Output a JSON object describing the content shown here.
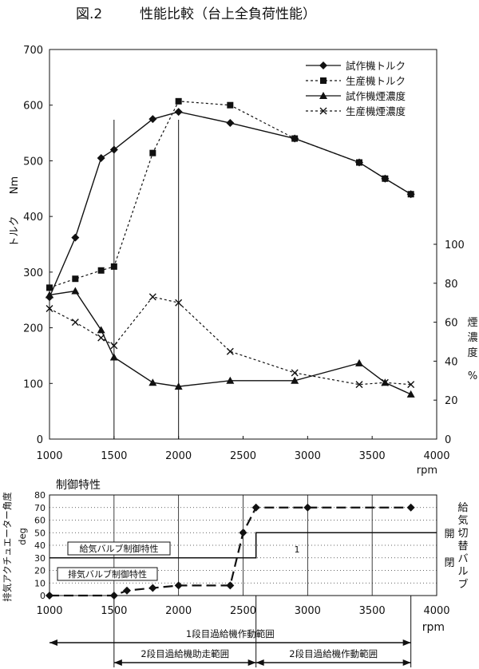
{
  "figure": {
    "number": "図.2",
    "title": "性能比較（台上全負荷性能）"
  },
  "chart_data": [
    {
      "type": "line",
      "name": "performance",
      "x_unit": "rpm",
      "xlim": [
        1000,
        4000
      ],
      "x_ticks": [
        1000,
        1500,
        2000,
        2500,
        3000,
        3500,
        4000
      ],
      "ylabel": "トルク",
      "yunit": "Nm",
      "ylim": [
        0,
        700
      ],
      "y_ticks": [
        0,
        100,
        200,
        300,
        400,
        500,
        600,
        700
      ],
      "y2label": "煙濃度",
      "y2unit": "%",
      "y2lim": [
        0,
        100
      ],
      "y2_ticks": [
        0,
        20,
        40,
        60,
        80,
        100
      ],
      "y2_range": [
        0,
        350
      ],
      "vlines": [
        1500,
        2000
      ],
      "legend_position": "top-right",
      "grid": false,
      "series": [
        {
          "name": "試作機トルク",
          "axis": "left",
          "style": "solid",
          "marker": "diamond",
          "x": [
            1000,
            1200,
            1400,
            1500,
            1800,
            2000,
            2400,
            2900,
            3400,
            3600,
            3800
          ],
          "y": [
            255,
            362,
            505,
            520,
            575,
            588,
            568,
            540,
            497,
            468,
            440
          ]
        },
        {
          "name": "生産機トルク",
          "axis": "left",
          "style": "dotted",
          "marker": "square",
          "x": [
            1000,
            1200,
            1400,
            1500,
            1800,
            2000,
            2400,
            2900,
            3400,
            3600,
            3800
          ],
          "y": [
            272,
            288,
            303,
            310,
            514,
            607,
            600,
            540,
            497,
            468,
            440
          ]
        },
        {
          "name": "試作機煙濃度",
          "axis": "right",
          "style": "solid",
          "marker": "triangle",
          "x": [
            1000,
            1200,
            1400,
            1500,
            1800,
            2000,
            2400,
            2900,
            3400,
            3600,
            3800
          ],
          "y": [
            74,
            76,
            56,
            42,
            29,
            27,
            30,
            30,
            39,
            29,
            23
          ]
        },
        {
          "name": "生産機煙濃度",
          "axis": "right",
          "style": "dotted",
          "marker": "x",
          "x": [
            1000,
            1200,
            1400,
            1500,
            1800,
            2000,
            2400,
            2900,
            3400,
            3600,
            3800
          ],
          "y": [
            67,
            60,
            52,
            48,
            73,
            70,
            45,
            34,
            28,
            29,
            28
          ]
        }
      ]
    },
    {
      "type": "line",
      "name": "control",
      "title": "制御特性",
      "x_unit": "rpm",
      "xlim": [
        1000,
        4000
      ],
      "x_ticks": [
        1000,
        1500,
        2000,
        2500,
        3000,
        3500,
        4000
      ],
      "ylabel": "排気アクチュエーター角度",
      "yunit": "deg",
      "ylim": [
        0,
        80
      ],
      "y_ticks": [
        0,
        10,
        20,
        30,
        40,
        50,
        60,
        70,
        80
      ],
      "grid": true,
      "right_axis_label": "給気切替バルブ",
      "valve_open_label": "開",
      "valve_closed_label": "閉",
      "series": [
        {
          "name": "排気アクチュエーター角度",
          "style": "dashed",
          "marker": "diamond",
          "x": [
            1000,
            1500,
            1600,
            1800,
            2000,
            2400,
            2500,
            2600,
            3000,
            3800
          ],
          "y": [
            0,
            0,
            4,
            6,
            8,
            8,
            50,
            70,
            70,
            70
          ]
        },
        {
          "name": "給気バルブ制御特性",
          "style": "solid",
          "marker": "none",
          "x": [
            1000,
            2600,
            2600,
            4000
          ],
          "y": [
            30,
            30,
            50,
            50
          ]
        }
      ],
      "annotations": [
        {
          "text": "給気バルブ制御特性"
        },
        {
          "text": "排気バルブ制御特性"
        },
        {
          "text": "1"
        }
      ]
    }
  ],
  "ranges": [
    {
      "label": "1段目過給機作動範囲",
      "from": 1000,
      "to": 3800
    },
    {
      "label": "2段目過給機助走範囲",
      "from": 1500,
      "to": 2600
    },
    {
      "label": "2段目過給機作動範囲",
      "from": 2600,
      "to": 3800
    }
  ]
}
